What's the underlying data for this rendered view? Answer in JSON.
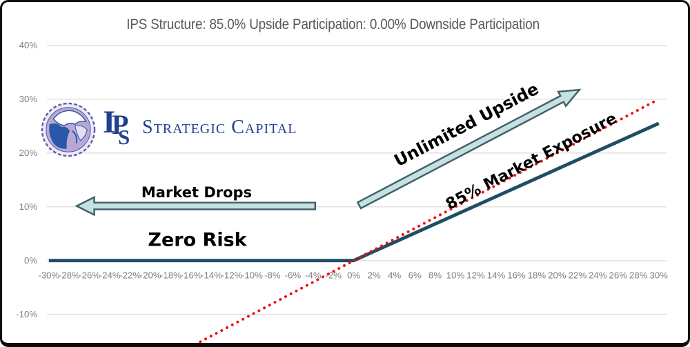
{
  "title": "IPS Structure: 85.0% Upside Participation: 0.00% Downside Participation",
  "logo": {
    "monogram_i": "I",
    "monogram_p": "P",
    "monogram_s": "S",
    "name": "Strategic Capital"
  },
  "annotations": {
    "market_drops": "Market Drops",
    "zero_risk": "Zero Risk",
    "unlimited_upside": "Unlimited Upside",
    "market_exposure": "85% Market Exposure"
  },
  "colors": {
    "title_text": "#595959",
    "axis_text": "#7f7f7f",
    "gridline": "#e2e2e2",
    "payoff_line": "#1f4e63",
    "market_line": "#f40b0b",
    "arrow_fill": "#c7e0e2",
    "arrow_stroke": "#40606a",
    "logo_navy": "#21408f",
    "logo_lavender": "#b9a8d4",
    "logo_blue": "#2a57a8"
  },
  "chart_data": {
    "type": "line",
    "title": "IPS Structure: 85.0% Upside Participation: 0.00% Downside Participation",
    "grid": "horizontal",
    "legend": "none",
    "xlim": [
      -30,
      30
    ],
    "ylim": [
      -15,
      42
    ],
    "gridline_values": [
      40,
      30,
      20,
      10,
      0,
      -10
    ],
    "y_ticks": [
      "40%",
      "30%",
      "20%",
      "10%",
      "0%",
      "-10%"
    ],
    "x_tick_values": [
      -30,
      -28,
      -26,
      -24,
      -22,
      -20,
      -18,
      -16,
      -14,
      -12,
      -10,
      -8,
      -6,
      -4,
      -2,
      0,
      2,
      4,
      6,
      8,
      10,
      12,
      14,
      16,
      18,
      20,
      22,
      24,
      26,
      28,
      30
    ],
    "x_ticks": [
      "-30%",
      "-28%",
      "-26%",
      "-24%",
      "-22%",
      "-20%",
      "-18%",
      "-16%",
      "-14%",
      "-12%",
      "-10%",
      "-8%",
      "-6%",
      "-4%",
      "-2%",
      "0%",
      "2%",
      "4%",
      "6%",
      "8%",
      "10%",
      "12%",
      "14%",
      "16%",
      "18%",
      "20%",
      "22%",
      "24%",
      "26%",
      "28%",
      "30%"
    ],
    "series": [
      {
        "name": "IPS payoff (85% upside, 0% downside)",
        "style": "solid",
        "color": "#1f4e63",
        "points": [
          [
            -30,
            0
          ],
          [
            0,
            0
          ],
          [
            30,
            25.5
          ]
        ]
      },
      {
        "name": "Market 1:1 reference",
        "style": "dotted",
        "color": "#f40b0b",
        "points": [
          [
            -15.1,
            -15.1
          ],
          [
            29.8,
            29.8
          ]
        ]
      }
    ]
  }
}
